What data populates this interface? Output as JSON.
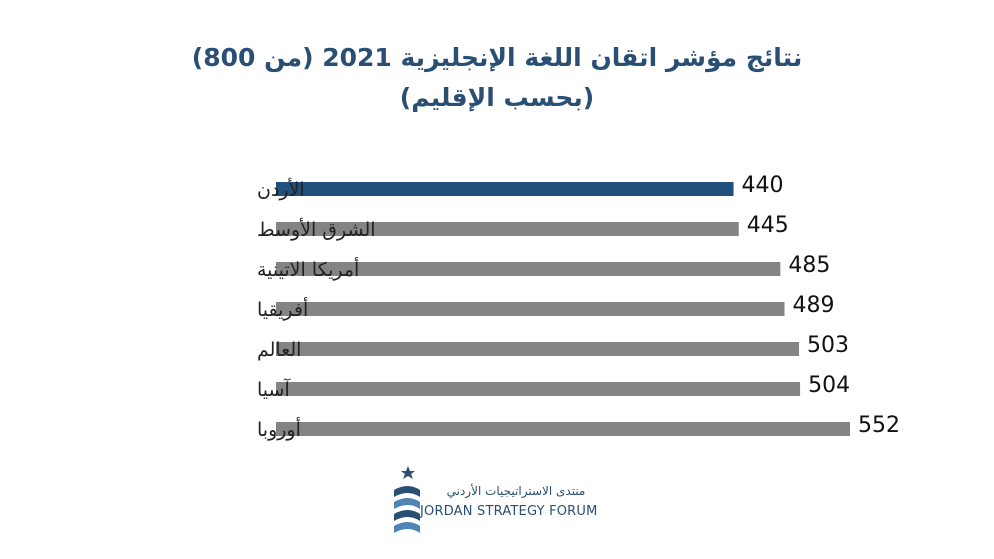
{
  "chart_data": {
    "type": "bar",
    "orientation": "horizontal",
    "title": "نتائج مؤشر اتقان اللغة الإنجليزية 2021 (من 800)",
    "subtitle": "(بحسب الإقليم)",
    "categories": [
      "الأردن",
      "الشرق الأوسط",
      "أمريكا الاتينية",
      "أفريقيا",
      "العالم",
      "آسيا",
      "أوروبا"
    ],
    "values": [
      440,
      445,
      485,
      489,
      503,
      504,
      552
    ],
    "value_labels": [
      "440",
      "445",
      "485",
      "489",
      "503",
      "504",
      "552"
    ],
    "highlight_index": 0,
    "highlight_color": "#20507b",
    "bar_color": "#848484",
    "xlim": [
      0,
      552
    ],
    "grid": false,
    "legend": "none",
    "data_labels": true
  },
  "logo": {
    "arabic_name": "منتدى الاستراتيجيات الأردني",
    "english_name": "JORDAN STRATEGY FORUM",
    "color": "#2a4f74"
  }
}
